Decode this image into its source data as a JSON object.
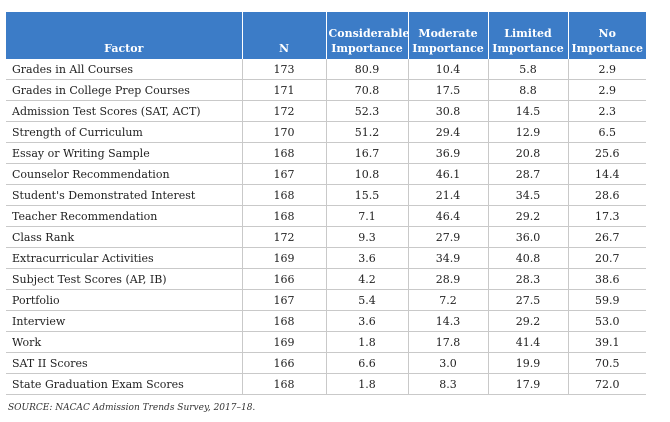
{
  "table": {
    "headers": [
      {
        "line1": "",
        "line2": "Factor"
      },
      {
        "line1": "",
        "line2": "N"
      },
      {
        "line1": "Considerable",
        "line2": "Importance"
      },
      {
        "line1": "Moderate",
        "line2": "Importance"
      },
      {
        "line1": "Limited",
        "line2": "Importance"
      },
      {
        "line1": "No",
        "line2": "Importance"
      }
    ],
    "rows": [
      [
        "Grades in All Courses",
        "173",
        "80.9",
        "10.4",
        "5.8",
        "2.9"
      ],
      [
        "Grades in College Prep Courses",
        "171",
        "70.8",
        "17.5",
        "8.8",
        "2.9"
      ],
      [
        "Admission Test Scores (SAT, ACT)",
        "172",
        "52.3",
        "30.8",
        "14.5",
        "2.3"
      ],
      [
        "Strength of Curriculum",
        "170",
        "51.2",
        "29.4",
        "12.9",
        "6.5"
      ],
      [
        "Essay or Writing Sample",
        "168",
        "16.7",
        "36.9",
        "20.8",
        "25.6"
      ],
      [
        "Counselor Recommendation",
        "167",
        "10.8",
        "46.1",
        "28.7",
        "14.4"
      ],
      [
        "Student's Demonstrated Interest",
        "168",
        "15.5",
        "21.4",
        "34.5",
        "28.6"
      ],
      [
        "Teacher Recommendation",
        "168",
        "7.1",
        "46.4",
        "29.2",
        "17.3"
      ],
      [
        "Class Rank",
        "172",
        "9.3",
        "27.9",
        "36.0",
        "26.7"
      ],
      [
        "Extracurricular Activities",
        "169",
        "3.6",
        "34.9",
        "40.8",
        "20.7"
      ],
      [
        "Subject Test Scores (AP, IB)",
        "166",
        "4.2",
        "28.9",
        "28.3",
        "38.6"
      ],
      [
        "Portfolio",
        "167",
        "5.4",
        "7.2",
        "27.5",
        "59.9"
      ],
      [
        "Interview",
        "168",
        "3.6",
        "14.3",
        "29.2",
        "53.0"
      ],
      [
        "Work",
        "169",
        "1.8",
        "17.8",
        "41.4",
        "39.1"
      ],
      [
        "SAT II Scores",
        "166",
        "6.6",
        "3.0",
        "19.9",
        "70.5"
      ],
      [
        "State Graduation Exam Scores",
        "168",
        "1.8",
        "8.3",
        "17.9",
        "72.0"
      ]
    ]
  },
  "source": "SOURCE: NACAC Admission Trends Survey, 2017–18.",
  "colors": {
    "header_background": "#3c7cc7",
    "header_text": "#ffffff",
    "grid_line": "#c9c9c9"
  }
}
